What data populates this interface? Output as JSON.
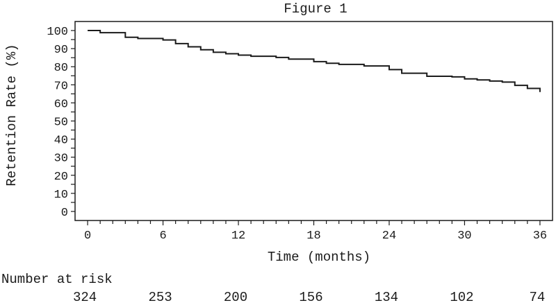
{
  "chart_data": {
    "type": "line",
    "title": "Figure 1",
    "xlabel": "Time (months)",
    "ylabel": "Retention Rate (%)",
    "xlim": [
      -1,
      37
    ],
    "ylim": [
      -5,
      105
    ],
    "x_ticks": [
      0,
      6,
      12,
      18,
      24,
      30,
      36
    ],
    "y_ticks": [
      0,
      10,
      20,
      30,
      40,
      50,
      60,
      70,
      80,
      90,
      100
    ],
    "x_minor_step": 1,
    "y_minor_step": 5,
    "grid": false,
    "legend": "none",
    "series": [
      {
        "line_style": "step",
        "color": "#1a1a1a",
        "x": [
          0,
          1,
          3,
          4,
          6,
          7,
          8,
          9,
          10,
          11,
          12,
          13,
          15,
          16,
          18,
          19,
          20,
          22,
          24,
          25,
          27,
          29,
          30,
          31,
          32,
          33,
          34,
          35,
          36
        ],
        "y": [
          100,
          98.8,
          96.3,
          95.6,
          94.8,
          92.8,
          91.0,
          89.4,
          88.0,
          87.2,
          86.4,
          85.8,
          85.1,
          84.2,
          82.8,
          81.9,
          81.3,
          80.4,
          78.4,
          76.4,
          74.7,
          74.4,
          73.3,
          72.7,
          72.1,
          71.5,
          69.7,
          68.0,
          66.0
        ]
      }
    ]
  },
  "risk_table": {
    "label": "Number at risk",
    "times": [
      0,
      6,
      12,
      18,
      24,
      30,
      36
    ],
    "values": [
      "324",
      "253",
      "200",
      "156",
      "134",
      "102",
      "74"
    ]
  }
}
